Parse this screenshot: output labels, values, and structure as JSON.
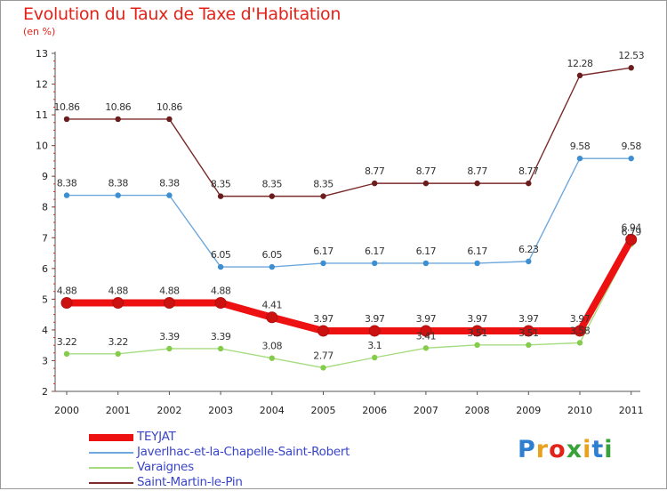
{
  "header": {
    "title": "Evolution du Taux de Taxe d'Habitation",
    "units": "(en %)"
  },
  "colors": {
    "title": "#e2231a",
    "legend_text": "#3a45c8"
  },
  "logo": {
    "text": "Proxiti",
    "colors": [
      "#2f7fd1",
      "#e8a21e",
      "#e2231a",
      "#3aa23a",
      "#e8a21e",
      "#2f7fd1",
      "#3aa23a"
    ]
  },
  "chart_data": {
    "type": "line",
    "title": "Evolution du Taux de Taxe d'Habitation",
    "ylabel": "(en %)",
    "xlabel": "",
    "categories": [
      "2000",
      "2001",
      "2002",
      "2003",
      "2004",
      "2005",
      "2006",
      "2007",
      "2008",
      "2009",
      "2010",
      "2011"
    ],
    "ylim": [
      2,
      13
    ],
    "yticks": [
      2,
      3,
      4,
      5,
      6,
      7,
      8,
      9,
      10,
      11,
      12,
      13
    ],
    "grid": false,
    "legend_position": "bottom-left",
    "series": [
      {
        "name": "TEYJAT",
        "color": "#ee1111",
        "marker": "#cc1111",
        "thick": true,
        "values": [
          4.88,
          4.88,
          4.88,
          4.88,
          4.41,
          3.97,
          3.97,
          3.97,
          3.97,
          3.97,
          3.97,
          6.94
        ],
        "labels": [
          "4.88",
          "4.88",
          "4.88",
          "4.88",
          "4.41",
          "3.97",
          "3.97",
          "3.97",
          "3.97",
          "3.97",
          "3.97",
          "6.94"
        ]
      },
      {
        "name": "Javerlhac-et-la-Chapelle-Saint-Robert",
        "color": "#6fa8dc",
        "marker": "#3d8fd1",
        "thick": false,
        "values": [
          8.38,
          8.38,
          8.38,
          6.05,
          6.05,
          6.17,
          6.17,
          6.17,
          6.17,
          6.23,
          9.58,
          9.58
        ],
        "labels": [
          "8.38",
          "8.38",
          "8.38",
          "6.05",
          "6.05",
          "6.17",
          "6.17",
          "6.17",
          "6.17",
          "6.23",
          "9.58",
          "9.58"
        ]
      },
      {
        "name": "Varaignes",
        "color": "#a6dc80",
        "marker": "#86cc4c",
        "thick": false,
        "values": [
          3.22,
          3.22,
          3.39,
          3.39,
          3.08,
          2.77,
          3.1,
          3.41,
          3.51,
          3.51,
          3.58,
          6.79
        ],
        "labels": [
          "3.22",
          "3.22",
          "3.39",
          "3.39",
          "3.08",
          "2.77",
          "3.1",
          "3.41",
          "3.51",
          "3.51",
          "3.58",
          "6.79"
        ]
      },
      {
        "name": "Saint-Martin-le-Pin",
        "color": "#7a2b2b",
        "marker": "#6b1c1c",
        "thick": false,
        "values": [
          10.86,
          10.86,
          10.86,
          8.35,
          8.35,
          8.35,
          8.77,
          8.77,
          8.77,
          8.77,
          12.28,
          12.53
        ],
        "labels": [
          "10.86",
          "10.86",
          "10.86",
          "8.35",
          "8.35",
          "8.35",
          "8.77",
          "8.77",
          "8.77",
          "8.77",
          "12.28",
          "12.53"
        ]
      }
    ]
  }
}
